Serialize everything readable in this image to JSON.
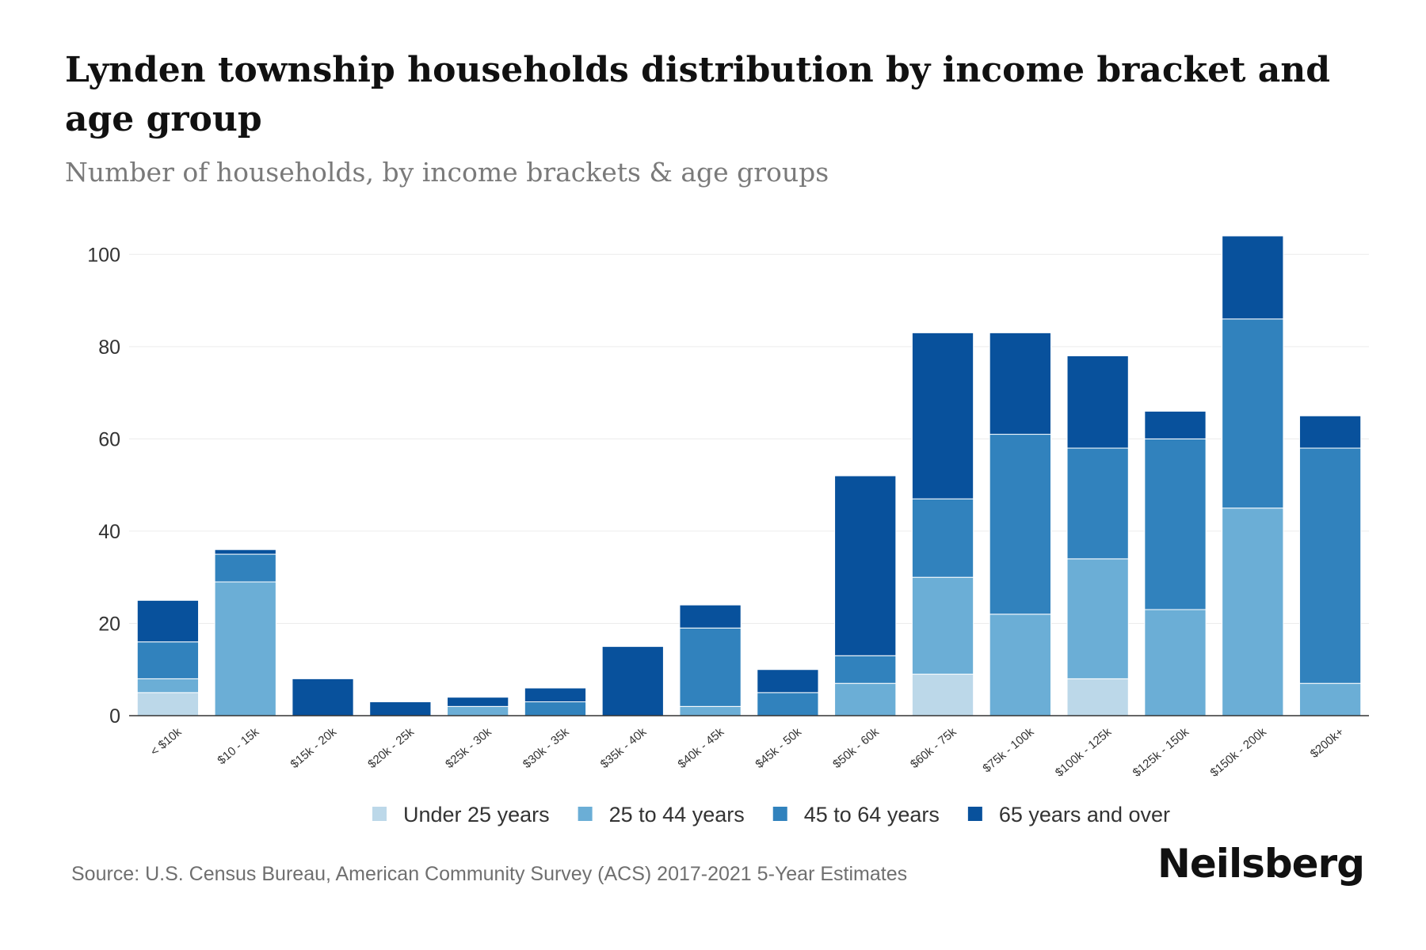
{
  "chart_data": {
    "type": "bar",
    "stacked": true,
    "title": "Lynden township households distribution by income bracket and age group",
    "subtitle": "Number of households, by income brackets & age groups",
    "xlabel": "",
    "ylabel": "",
    "ylim": [
      0,
      104
    ],
    "yticks": [
      0,
      20,
      40,
      60,
      80,
      100
    ],
    "grid": true,
    "legend_position": "bottom",
    "categories": [
      "< $10k",
      "$10 - 15k",
      "$15k - 20k",
      "$20k - 25k",
      "$25k - 30k",
      "$30k - 35k",
      "$35k - 40k",
      "$40k - 45k",
      "$45k - 50k",
      "$50k - 60k",
      "$60k - 75k",
      "$75k - 100k",
      "$100k - 125k",
      "$125k - 150k",
      "$150k - 200k",
      "$200k+"
    ],
    "series": [
      {
        "name": "Under 25 years",
        "color": "#bcd8e9",
        "values": [
          5,
          0,
          0,
          0,
          0,
          0,
          0,
          0,
          0,
          0,
          9,
          0,
          8,
          0,
          0,
          0
        ]
      },
      {
        "name": "25 to 44 years",
        "color": "#6baed6",
        "values": [
          3,
          29,
          0,
          0,
          2,
          0,
          0,
          2,
          0,
          7,
          21,
          22,
          26,
          23,
          45,
          7
        ]
      },
      {
        "name": "45 to 64 years",
        "color": "#3182bd",
        "values": [
          8,
          6,
          0,
          0,
          0,
          3,
          0,
          17,
          5,
          6,
          17,
          39,
          24,
          37,
          41,
          51
        ]
      },
      {
        "name": "65 years and over",
        "color": "#08519c",
        "values": [
          9,
          1,
          8,
          3,
          2,
          3,
          15,
          5,
          5,
          39,
          36,
          22,
          20,
          6,
          18,
          7
        ]
      }
    ]
  },
  "source": "Source: U.S. Census Bureau, American Community Survey (ACS) 2017-2021 5-Year Estimates",
  "brand": "Neilsberg"
}
